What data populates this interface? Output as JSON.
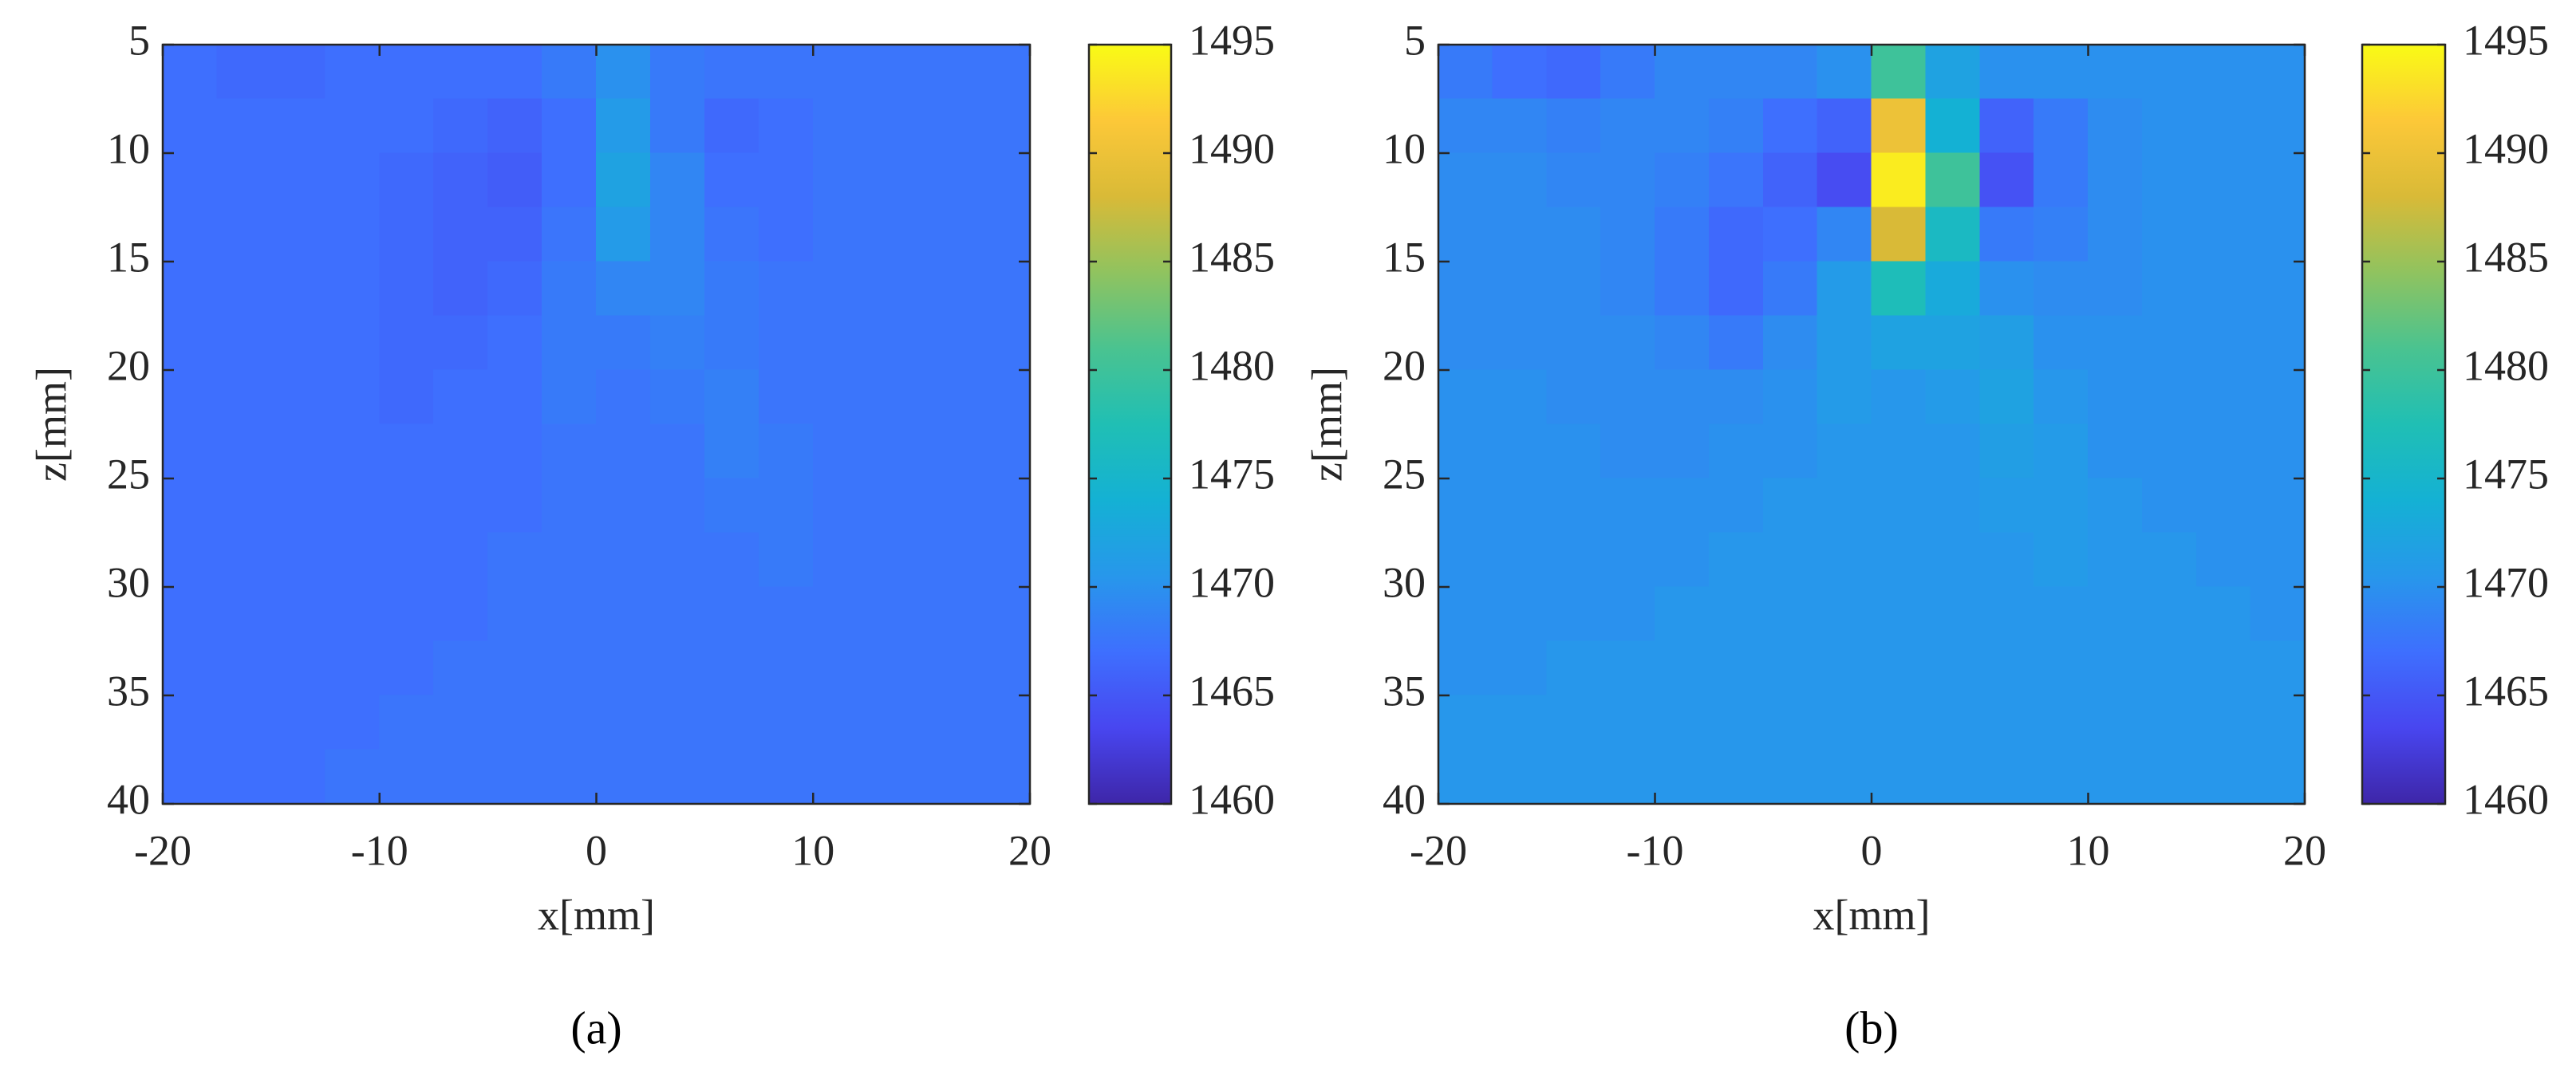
{
  "chart_data": [
    {
      "type": "heatmap",
      "caption": "(a)",
      "xlabel": "x[mm]",
      "ylabel": "z[mm]",
      "xlim": [
        -20,
        20
      ],
      "xticks": [
        -20,
        -10,
        0,
        10,
        20
      ],
      "ylim": [
        5,
        40
      ],
      "yticks": [
        5,
        10,
        15,
        20,
        25,
        30,
        35,
        40
      ],
      "y_reversed": true,
      "clim": [
        1460,
        1495
      ],
      "cticks": [
        1460,
        1465,
        1470,
        1475,
        1480,
        1485,
        1490,
        1495
      ],
      "colormap": [
        "#3e26a8",
        "#4846f0",
        "#3e6ffe",
        "#2797eb",
        "#14b1d4",
        "#20bfb4",
        "#4ac390",
        "#90c35f",
        "#d9ba37",
        "#fcc838",
        "#f9fb15"
      ],
      "x": [
        -18.75,
        -16.25,
        -13.75,
        -11.25,
        -8.75,
        -6.25,
        -3.75,
        -1.25,
        1.25,
        3.75,
        6.25,
        8.75,
        11.25,
        13.75,
        16.25,
        18.75
      ],
      "y": [
        6.25,
        8.75,
        11.25,
        13.75,
        16.25,
        18.75,
        21.25,
        23.75,
        26.25,
        28.75,
        31.25,
        33.75,
        36.25,
        38.75
      ],
      "values": [
        [
          1467,
          1466.5,
          1466.5,
          1467,
          1467,
          1467,
          1467,
          1468,
          1470,
          1468,
          1467.5,
          1467.5,
          1467.5,
          1467.5,
          1467.5,
          1467.5
        ],
        [
          1467,
          1467,
          1467,
          1467,
          1467,
          1466.5,
          1466,
          1467,
          1471,
          1468,
          1466.5,
          1467,
          1467.5,
          1467.5,
          1467.5,
          1467.5
        ],
        [
          1467,
          1467,
          1467,
          1467,
          1466.5,
          1466,
          1465.5,
          1467,
          1472,
          1469,
          1467,
          1467,
          1467.5,
          1467.5,
          1467.5,
          1467.5
        ],
        [
          1467,
          1467,
          1467,
          1467,
          1466.5,
          1466,
          1466,
          1467.5,
          1471,
          1469,
          1467.5,
          1467,
          1467.5,
          1467.5,
          1467.5,
          1467.5
        ],
        [
          1467,
          1467,
          1467,
          1467,
          1466.5,
          1466,
          1466.5,
          1468,
          1469,
          1469,
          1468,
          1467.5,
          1467.5,
          1467.5,
          1467.5,
          1467.5
        ],
        [
          1467,
          1467,
          1467,
          1467,
          1466.5,
          1466.5,
          1467,
          1468,
          1468,
          1468.5,
          1468,
          1467.5,
          1467.5,
          1467.5,
          1467.5,
          1467.5
        ],
        [
          1467,
          1467,
          1467,
          1467,
          1466.5,
          1467,
          1467,
          1468,
          1467.5,
          1468,
          1468.5,
          1467.5,
          1467.5,
          1467.5,
          1467.5,
          1467.5
        ],
        [
          1467,
          1467,
          1467,
          1467,
          1467,
          1467,
          1467,
          1467.5,
          1467.5,
          1467.5,
          1468.5,
          1468,
          1467.5,
          1467.5,
          1467.5,
          1467.5
        ],
        [
          1467,
          1467,
          1467,
          1467,
          1467,
          1467,
          1467,
          1467.5,
          1467.5,
          1467.5,
          1468,
          1468,
          1467.5,
          1467.5,
          1467.5,
          1467.5
        ],
        [
          1467,
          1467,
          1467,
          1467,
          1467,
          1467,
          1467.5,
          1467.5,
          1467.5,
          1467.5,
          1467.5,
          1468,
          1467.5,
          1467.5,
          1467.5,
          1467.5
        ],
        [
          1467,
          1467,
          1467,
          1467,
          1467,
          1467,
          1467.5,
          1467.5,
          1467.5,
          1467.5,
          1467.5,
          1467.5,
          1467.5,
          1467.5,
          1467.5,
          1467.5
        ],
        [
          1467,
          1467,
          1467,
          1467,
          1467,
          1467.5,
          1467.5,
          1467.5,
          1467.5,
          1467.5,
          1467.5,
          1467.5,
          1467.5,
          1467.5,
          1467.5,
          1467.5
        ],
        [
          1467,
          1467,
          1467,
          1467,
          1467.5,
          1467.5,
          1467.5,
          1467.5,
          1467.5,
          1467.5,
          1467.5,
          1467.5,
          1467.5,
          1467.5,
          1467.5,
          1467.5
        ],
        [
          1467,
          1467,
          1467,
          1467.5,
          1467.5,
          1467.5,
          1467.5,
          1467.5,
          1467.5,
          1467.5,
          1467.5,
          1467.5,
          1467.5,
          1467.5,
          1467.5,
          1467.5
        ]
      ]
    },
    {
      "type": "heatmap",
      "caption": "(b)",
      "xlabel": "x[mm]",
      "ylabel": "z[mm]",
      "xlim": [
        -20,
        20
      ],
      "xticks": [
        -20,
        -10,
        0,
        10,
        20
      ],
      "ylim": [
        5,
        40
      ],
      "yticks": [
        5,
        10,
        15,
        20,
        25,
        30,
        35,
        40
      ],
      "y_reversed": true,
      "clim": [
        1460,
        1495
      ],
      "cticks": [
        1460,
        1465,
        1470,
        1475,
        1480,
        1485,
        1490,
        1495
      ],
      "colormap": [
        "#3e26a8",
        "#4846f0",
        "#3e6ffe",
        "#2797eb",
        "#14b1d4",
        "#20bfb4",
        "#4ac390",
        "#90c35f",
        "#d9ba37",
        "#fcc838",
        "#f9fb15"
      ],
      "x": [
        -18.75,
        -16.25,
        -13.75,
        -11.25,
        -8.75,
        -6.25,
        -3.75,
        -1.25,
        1.25,
        3.75,
        6.25,
        8.75,
        11.25,
        13.75,
        16.25,
        18.75
      ],
      "y": [
        6.25,
        8.75,
        11.25,
        13.75,
        16.25,
        18.75,
        21.25,
        23.75,
        26.25,
        28.75,
        31.25,
        33.75,
        36.25,
        38.75
      ],
      "values": [
        [
          1468,
          1467,
          1466.5,
          1468,
          1469,
          1469,
          1469,
          1470,
          1480,
          1472,
          1470,
          1470,
          1470,
          1470,
          1470,
          1470
        ],
        [
          1469,
          1469,
          1468.5,
          1469,
          1469,
          1468.5,
          1467,
          1466,
          1490,
          1474,
          1466,
          1468,
          1469.5,
          1470,
          1470,
          1470
        ],
        [
          1469.5,
          1469.5,
          1469,
          1469,
          1468.5,
          1467.5,
          1466,
          1464,
          1494,
          1480,
          1464.5,
          1468,
          1469.5,
          1470,
          1470,
          1470
        ],
        [
          1469.5,
          1469.5,
          1469.5,
          1469,
          1468,
          1466.5,
          1467,
          1469,
          1488,
          1476,
          1468,
          1468.5,
          1469.5,
          1470,
          1470,
          1470
        ],
        [
          1469.5,
          1469.5,
          1469.5,
          1469,
          1468,
          1466.5,
          1468,
          1471,
          1477,
          1473,
          1470,
          1469.5,
          1469.5,
          1470,
          1470,
          1470
        ],
        [
          1469.5,
          1469.5,
          1469.5,
          1469.5,
          1469,
          1468,
          1469.5,
          1471,
          1472,
          1472,
          1471.5,
          1470,
          1470,
          1470,
          1470,
          1470
        ],
        [
          1470,
          1470,
          1469.5,
          1469.5,
          1469.5,
          1469.5,
          1470,
          1471,
          1470.5,
          1471,
          1472,
          1470.5,
          1470,
          1470,
          1470,
          1470
        ],
        [
          1470,
          1470,
          1470,
          1469.5,
          1469.5,
          1470,
          1470,
          1470.5,
          1470.5,
          1470.5,
          1471.5,
          1471,
          1470,
          1470,
          1470,
          1470
        ],
        [
          1470,
          1470,
          1470,
          1470,
          1470,
          1470,
          1470.5,
          1470.5,
          1470.5,
          1470.5,
          1471,
          1471,
          1470.5,
          1470,
          1470,
          1470
        ],
        [
          1470,
          1470,
          1470,
          1470,
          1470,
          1470.5,
          1470.5,
          1470.5,
          1470.5,
          1470.5,
          1470.5,
          1471,
          1470.5,
          1470.5,
          1470,
          1470
        ],
        [
          1470,
          1470,
          1470,
          1470,
          1470.5,
          1470.5,
          1470.5,
          1470.5,
          1470.5,
          1470.5,
          1470.5,
          1470.5,
          1470.5,
          1470.5,
          1470.5,
          1470
        ],
        [
          1470,
          1470,
          1470.5,
          1470.5,
          1470.5,
          1470.5,
          1470.5,
          1470.5,
          1470.5,
          1470.5,
          1470.5,
          1470.5,
          1470.5,
          1470.5,
          1470.5,
          1470.5
        ],
        [
          1470.5,
          1470.5,
          1470.5,
          1470.5,
          1470.5,
          1470.5,
          1470.5,
          1470.5,
          1470.5,
          1470.5,
          1470.5,
          1470.5,
          1470.5,
          1470.5,
          1470.5,
          1470.5
        ],
        [
          1470.5,
          1470.5,
          1470.5,
          1470.5,
          1470.5,
          1470.5,
          1470.5,
          1470.5,
          1470.5,
          1470.5,
          1470.5,
          1470.5,
          1470.5,
          1470.5,
          1470.5,
          1470.5
        ]
      ]
    }
  ]
}
